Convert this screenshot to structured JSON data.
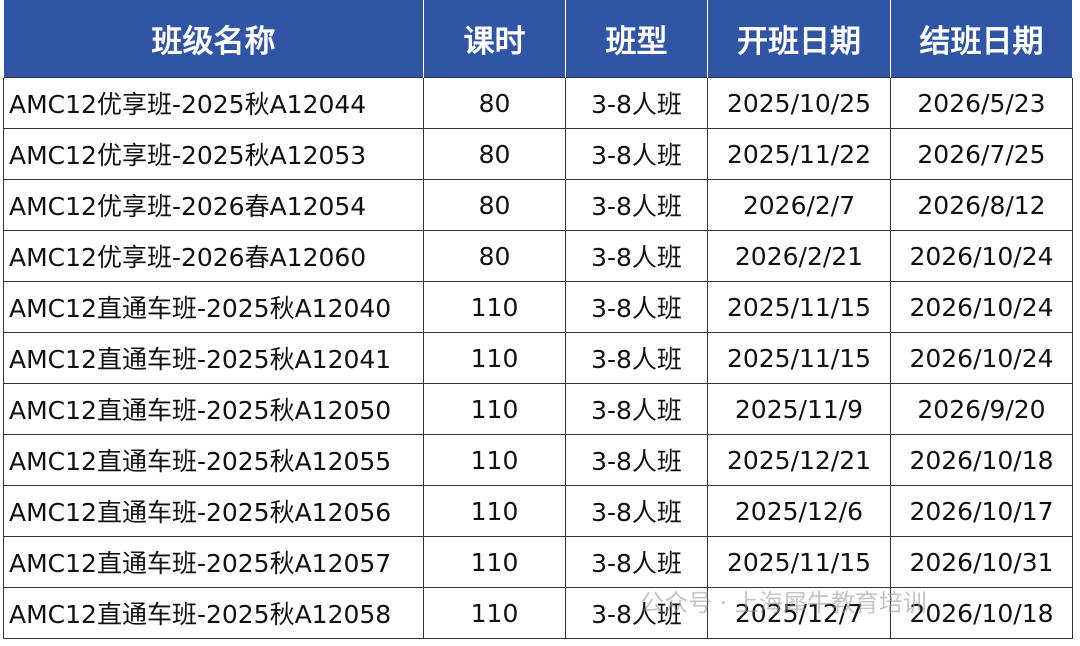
{
  "table": {
    "header": [
      "班级名称",
      "课时",
      "班型",
      "开班日期",
      "结班日期"
    ],
    "rows": [
      [
        "AMC12优享班-2025秋A12044",
        "80",
        "3-8人班",
        "2025/10/25",
        "2026/5/23"
      ],
      [
        "AMC12优享班-2025秋A12053",
        "80",
        "3-8人班",
        "2025/11/22",
        "2026/7/25"
      ],
      [
        "AMC12优享班-2026春A12054",
        "80",
        "3-8人班",
        "2026/2/7",
        "2026/8/12"
      ],
      [
        "AMC12优享班-2026春A12060",
        "80",
        "3-8人班",
        "2026/2/21",
        "2026/10/24"
      ],
      [
        "AMC12直通车班-2025秋A12040",
        "110",
        "3-8人班",
        "2025/11/15",
        "2026/10/24"
      ],
      [
        "AMC12直通车班-2025秋A12041",
        "110",
        "3-8人班",
        "2025/11/15",
        "2026/10/24"
      ],
      [
        "AMC12直通车班-2025秋A12050",
        "110",
        "3-8人班",
        "2025/11/9",
        "2026/9/20"
      ],
      [
        "AMC12直通车班-2025秋A12055",
        "110",
        "3-8人班",
        "2025/12/21",
        "2026/10/18"
      ],
      [
        "AMC12直通车班-2025秋A12056",
        "110",
        "3-8人班",
        "2025/12/6",
        "2026/10/17"
      ],
      [
        "AMC12直通车班-2025秋A12057",
        "110",
        "3-8人班",
        "2025/11/15",
        "2026/10/31"
      ],
      [
        "AMC12直通车班-2025秋A12058",
        "110",
        "3-8人班",
        "2025/12/7",
        "2026/10/18"
      ]
    ]
  },
  "watermark": "公众号 · 上海犀牛教育培训"
}
